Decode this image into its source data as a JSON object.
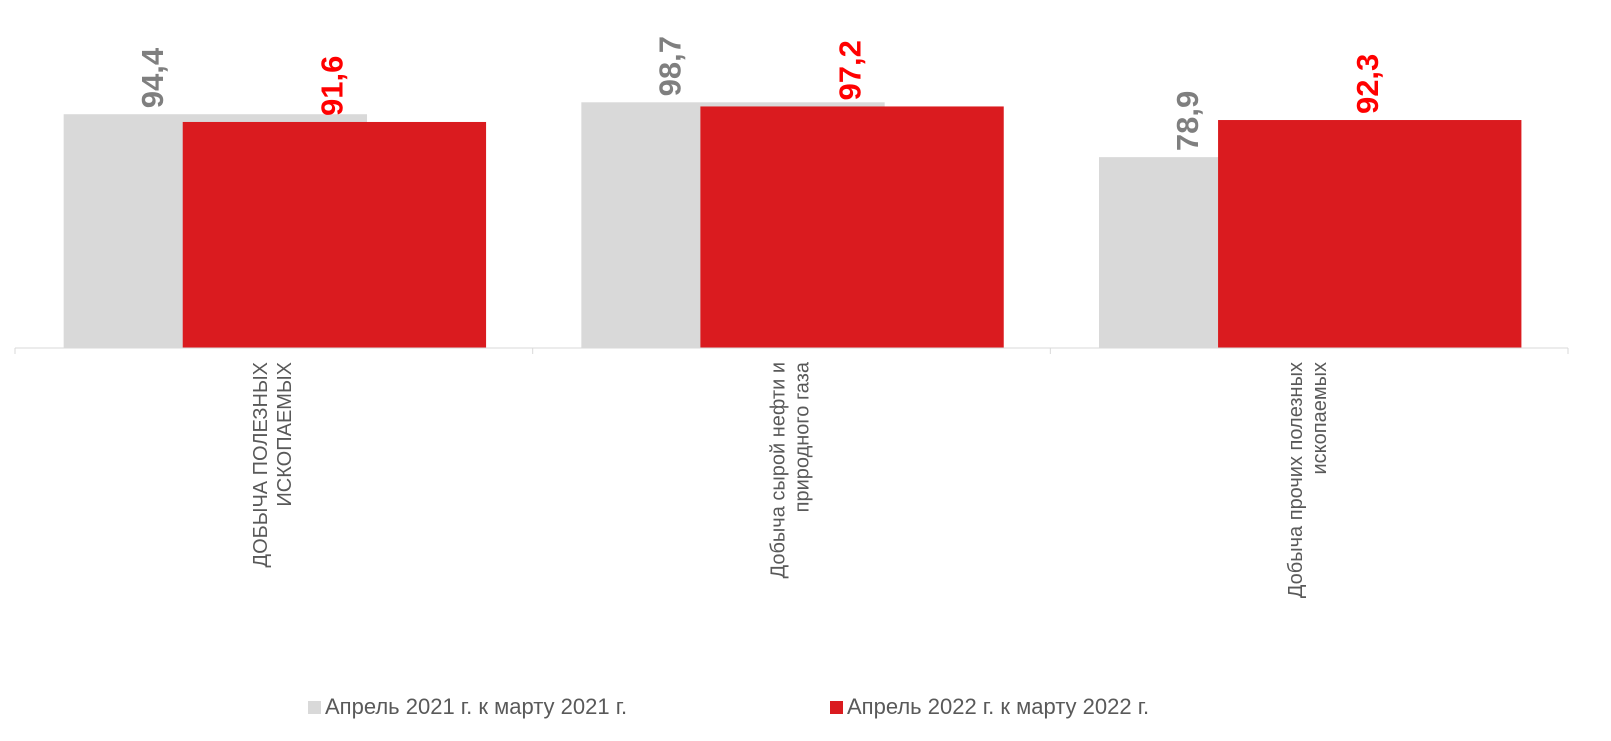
{
  "chart_data": {
    "type": "bar",
    "categories": [
      "ДОБЫЧА ПОЛЕЗНЫХ ИСКОПАЕМЫХ",
      "Добыча сырой нефти и природного газа",
      "Добыча прочих полезных ископаемых"
    ],
    "series": [
      {
        "name": "Апрель 2021 г. к марту 2021 г.",
        "color": "#d9d9d9",
        "label_color": "#7f7f7f",
        "values": [
          94.4,
          98.7,
          78.9
        ],
        "value_labels": [
          "94,4",
          "98,7",
          "78,9"
        ]
      },
      {
        "name": "Апрель 2022 г. к марту 2022 г.",
        "color": "#da1b1f",
        "label_color": "#ff0000",
        "values": [
          91.6,
          97.2,
          92.3
        ],
        "value_labels": [
          "91,6",
          "97,2",
          "92,3"
        ]
      }
    ],
    "ylim": [
      10,
      110
    ],
    "grid": false,
    "legend": "bottom"
  }
}
